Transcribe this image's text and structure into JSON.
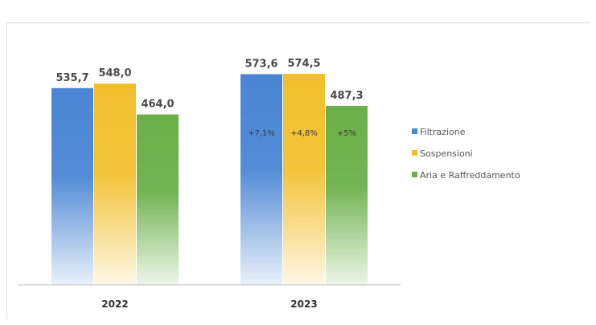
{
  "chart_data": {
    "type": "bar",
    "categories": [
      "2022",
      "2023"
    ],
    "series": [
      {
        "name": "Filtrazione",
        "color": "#4a86d4",
        "values": [
          535.7,
          573.6
        ],
        "value_labels": [
          "535,7",
          "573,6"
        ],
        "change_labels": [
          "",
          "+7,1%"
        ]
      },
      {
        "name": "Sospensioni",
        "color": "#f2c02e",
        "values": [
          548.0,
          574.5
        ],
        "value_labels": [
          "548,0",
          "574,5"
        ],
        "change_labels": [
          "",
          "+4,8%"
        ]
      },
      {
        "name": "Aria e Raffreddamento",
        "color": "#6bb04a",
        "values": [
          464.0,
          487.3
        ],
        "value_labels": [
          "464,0",
          "487,3"
        ],
        "change_labels": [
          "",
          "+5%"
        ]
      }
    ],
    "title": "",
    "xlabel": "",
    "ylabel": "",
    "ylim": [
      0,
      574.5
    ],
    "grid": false,
    "legend_position": "right"
  }
}
